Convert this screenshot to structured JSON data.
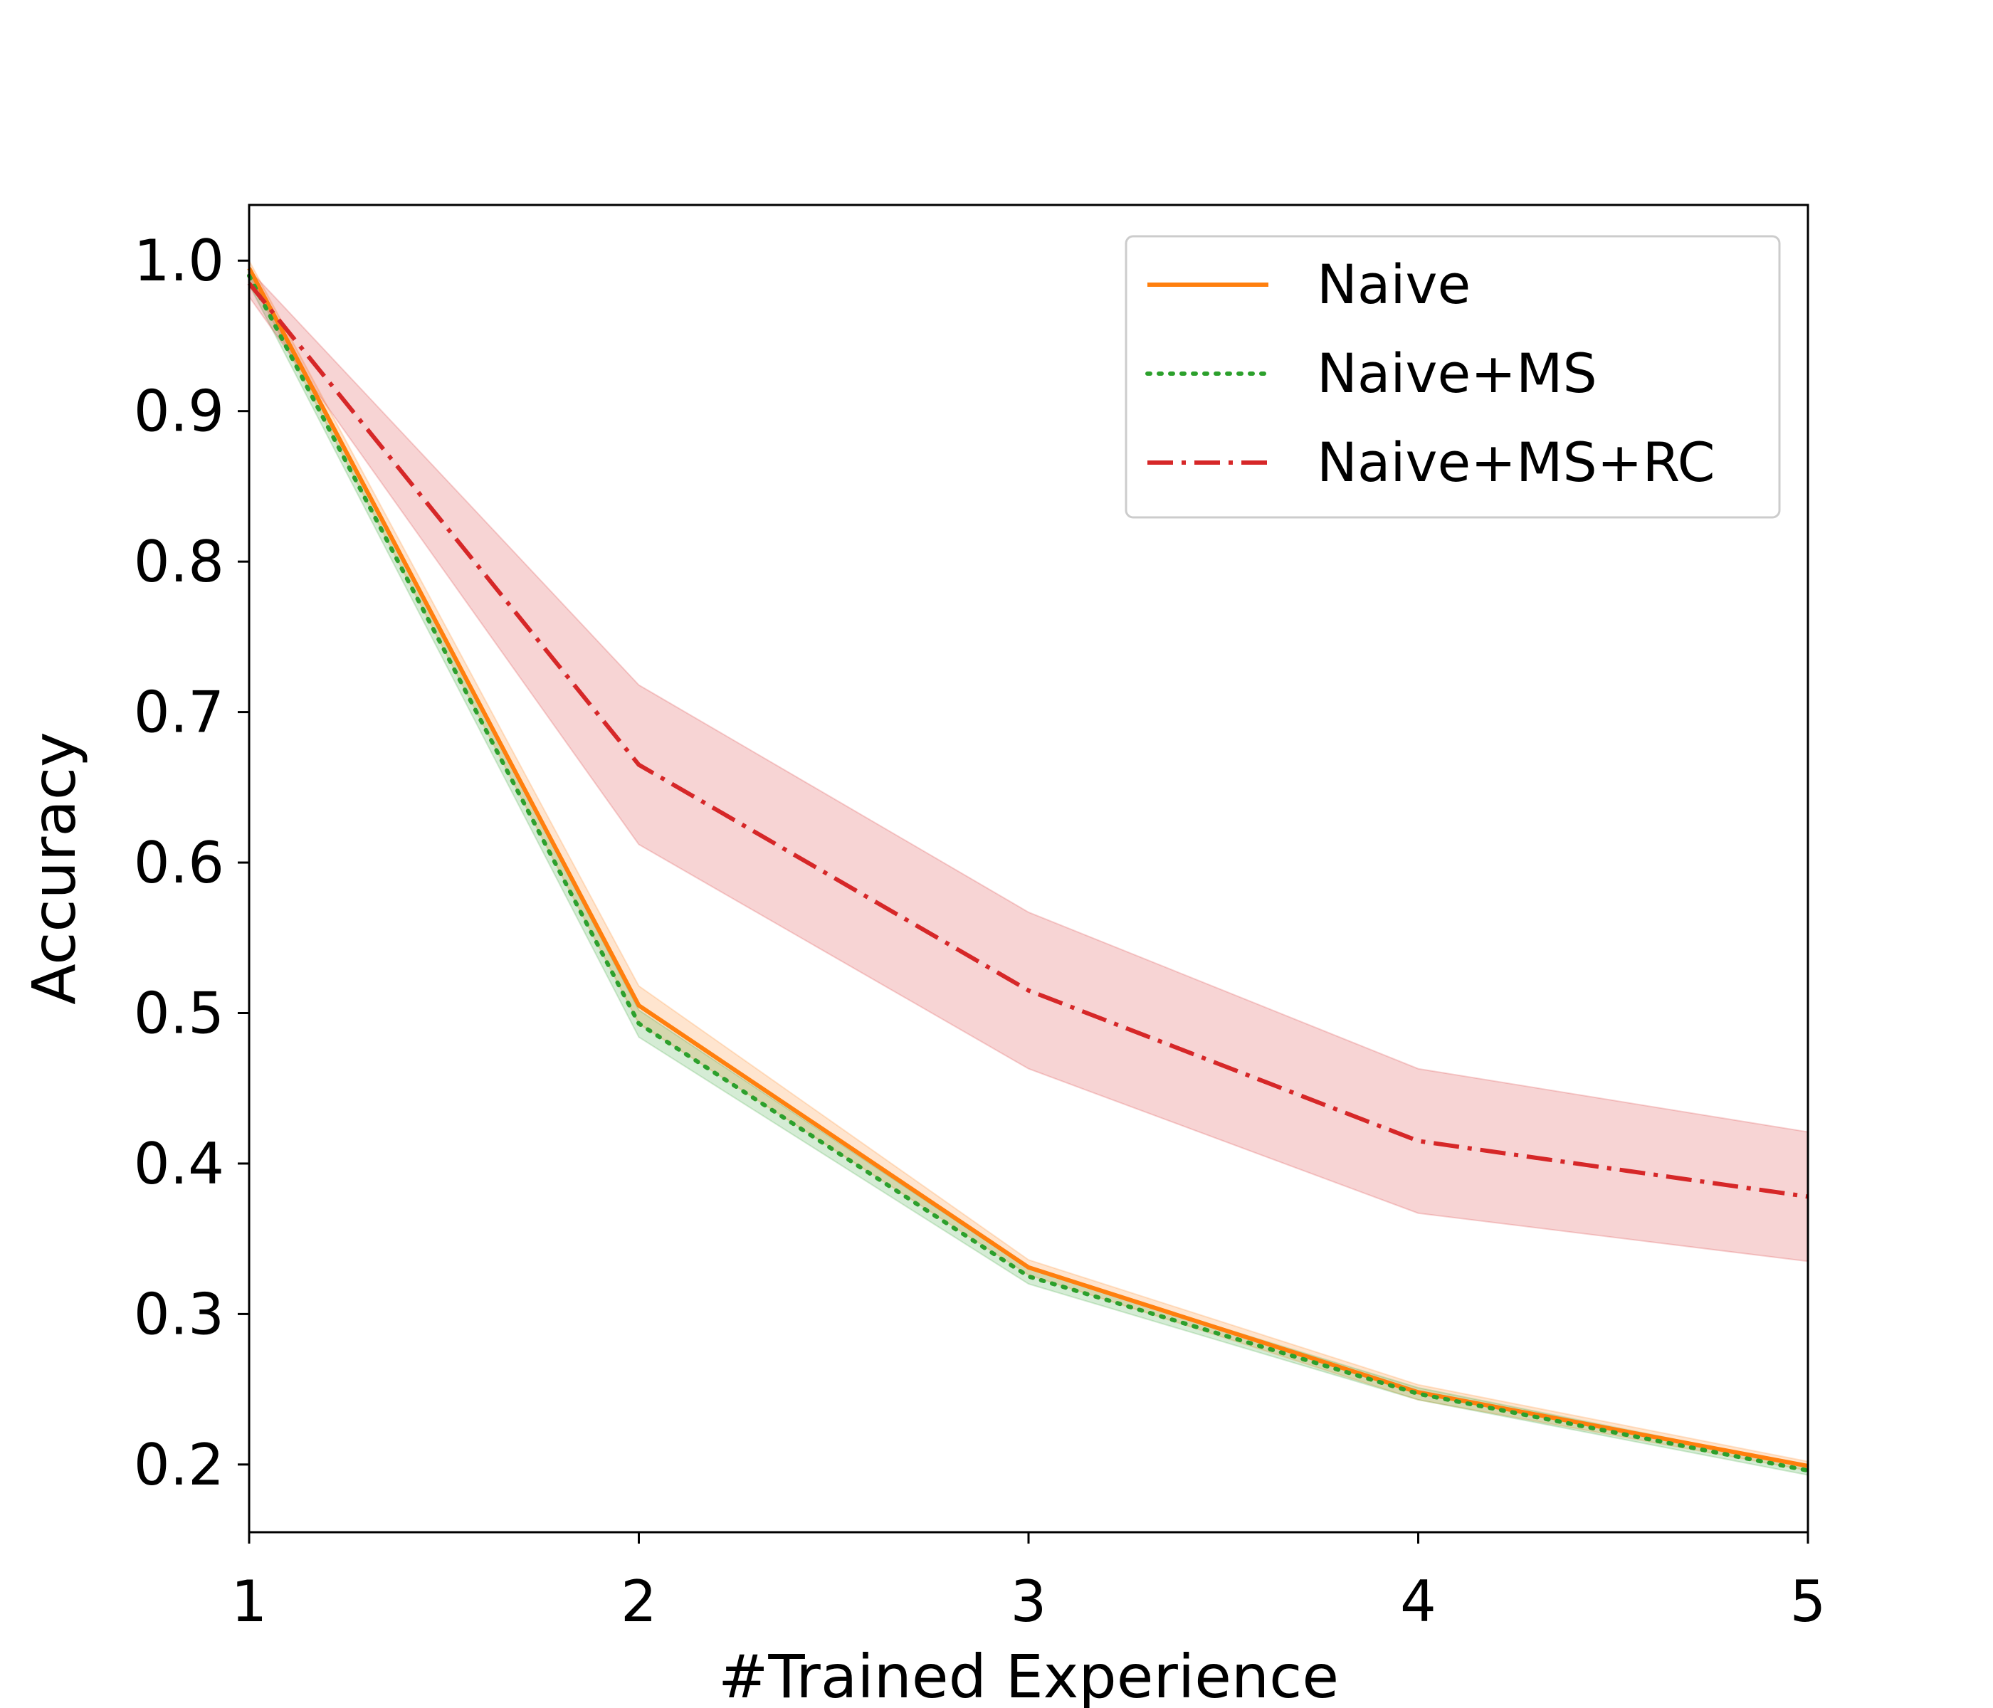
{
  "chart_data": {
    "type": "line",
    "title": "",
    "xlabel": "#Trained Experience",
    "ylabel": "Accuracy",
    "x": [
      1,
      2,
      3,
      4,
      5
    ],
    "xlim": [
      1,
      5
    ],
    "ylim": [
      0.155,
      1.037
    ],
    "xticks": [
      "1",
      "2",
      "3",
      "4",
      "5"
    ],
    "yticks": [
      "0.2",
      "0.3",
      "0.4",
      "0.5",
      "0.6",
      "0.7",
      "0.8",
      "0.9",
      "1.0"
    ],
    "ytick_values": [
      0.2,
      0.3,
      0.4,
      0.5,
      0.6,
      0.7,
      0.8,
      0.9,
      1.0
    ],
    "grid": false,
    "legend_position": "top-right",
    "series": [
      {
        "name": "Naive",
        "color": "#ff7f0e",
        "style": "solid",
        "values": [
          0.995,
          0.505,
          0.331,
          0.248,
          0.199
        ],
        "band_low": [
          0.99,
          0.493,
          0.326,
          0.243,
          0.196
        ],
        "band_high": [
          1.0,
          0.518,
          0.336,
          0.253,
          0.202
        ]
      },
      {
        "name": "Naive+MS",
        "color": "#2ca02c",
        "style": "dotted",
        "values": [
          0.99,
          0.493,
          0.325,
          0.247,
          0.196
        ],
        "band_low": [
          0.984,
          0.484,
          0.32,
          0.243,
          0.193
        ],
        "band_high": [
          0.996,
          0.502,
          0.33,
          0.251,
          0.199
        ]
      },
      {
        "name": "Naive+MS+RC",
        "color": "#d62728",
        "style": "dashdot",
        "values": [
          0.985,
          0.665,
          0.515,
          0.415,
          0.378
        ],
        "band_low": [
          0.976,
          0.612,
          0.463,
          0.367,
          0.335
        ],
        "band_high": [
          0.994,
          0.718,
          0.567,
          0.463,
          0.421
        ]
      }
    ]
  }
}
